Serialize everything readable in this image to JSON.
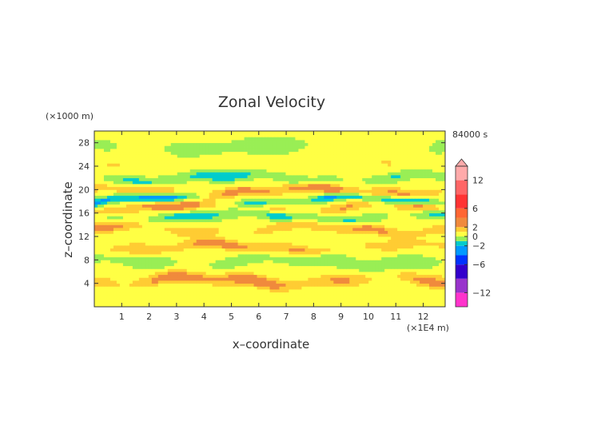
{
  "chart_data": {
    "type": "heatmap",
    "title": "Zonal Velocity",
    "xlabel": "x–coordinate",
    "ylabel": "z–coordinate",
    "x_unit": "(×1E4 m)",
    "y_unit": "(×1000 m)",
    "time_label": "84000 s",
    "xlim": [
      0,
      12.8
    ],
    "ylim": [
      0,
      30
    ],
    "x_ticks": [
      1,
      2,
      3,
      4,
      5,
      6,
      7,
      8,
      9,
      10,
      11,
      12
    ],
    "y_ticks": [
      4,
      8,
      12,
      16,
      20,
      24,
      28
    ],
    "colorbar": {
      "range": [
        -15,
        15
      ],
      "tick_values": [
        12,
        6,
        2,
        0,
        -2,
        -6,
        -12
      ],
      "tick_labels": [
        "12",
        "6",
        "2",
        "0",
        "−2",
        "−6",
        "−12"
      ],
      "levels": [
        {
          "from": -15,
          "to": -12,
          "color": "#ff33cc"
        },
        {
          "from": -12,
          "to": -9,
          "color": "#9933cc"
        },
        {
          "from": -9,
          "to": -6,
          "color": "#3300cc"
        },
        {
          "from": -6,
          "to": -4,
          "color": "#0033ff"
        },
        {
          "from": -4,
          "to": -2,
          "color": "#0099ff"
        },
        {
          "from": -2,
          "to": -1,
          "color": "#00cccc"
        },
        {
          "from": -1,
          "to": 0,
          "color": "#99ee55"
        },
        {
          "from": 0,
          "to": 1,
          "color": "#ffff44"
        },
        {
          "from": 1,
          "to": 2,
          "color": "#ffcc33"
        },
        {
          "from": 2,
          "to": 4,
          "color": "#f08a3c"
        },
        {
          "from": 4,
          "to": 6,
          "color": "#ff6633"
        },
        {
          "from": 6,
          "to": 9,
          "color": "#ff3333"
        },
        {
          "from": 9,
          "to": 12,
          "color": "#ff6666"
        },
        {
          "from": 12,
          "to": 15,
          "color": "#ffaaaa"
        }
      ]
    },
    "field_bands": [
      {
        "z": 4.5,
        "amp": 3.2,
        "width": 0.7
      },
      {
        "z": 7.8,
        "amp": -1.4,
        "width": 0.8
      },
      {
        "z": 10.2,
        "amp": 2.6,
        "width": 0.6
      },
      {
        "z": 13.3,
        "amp": 2.2,
        "width": 0.6
      },
      {
        "z": 15.5,
        "amp": -2.6,
        "width": 0.6
      },
      {
        "z": 17.0,
        "amp": 3.0,
        "width": 0.6
      },
      {
        "z": 18.2,
        "amp": -3.8,
        "width": 0.5
      },
      {
        "z": 19.8,
        "amp": 3.2,
        "width": 0.6
      },
      {
        "z": 22.0,
        "amp": -2.4,
        "width": 0.6
      },
      {
        "z": 24.5,
        "amp": 0.8,
        "width": 1.0
      },
      {
        "z": 27.0,
        "amp": -0.8,
        "width": 1.4
      }
    ]
  }
}
